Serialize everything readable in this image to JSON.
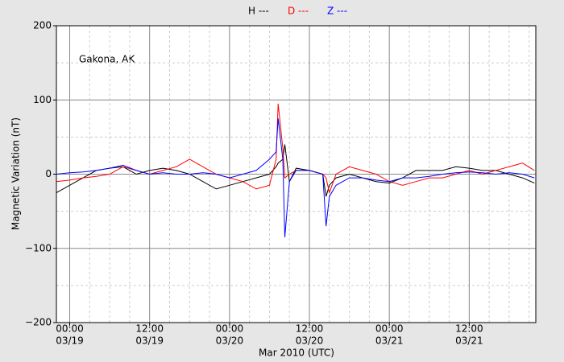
{
  "chart_data": {
    "type": "line",
    "annotation": "Gakona, AK",
    "xlabel": "Mar 2010 (UTC)",
    "ylabel": "Magnetic Variation (nT)",
    "x": [
      "2010-03-18T22:00Z",
      "2010-03-19T00:00Z",
      "2010-03-19T02:00Z",
      "2010-03-19T04:00Z",
      "2010-03-19T06:00Z",
      "2010-03-19T08:00Z",
      "2010-03-19T10:00Z",
      "2010-03-19T12:00Z",
      "2010-03-19T14:00Z",
      "2010-03-19T16:00Z",
      "2010-03-19T18:00Z",
      "2010-03-19T20:00Z",
      "2010-03-19T22:00Z",
      "2010-03-20T00:00Z",
      "2010-03-20T02:00Z",
      "2010-03-20T04:00Z",
      "2010-03-20T06:00Z",
      "2010-03-20T07:00Z",
      "2010-03-20T07:18Z",
      "2010-03-20T08:00Z",
      "2010-03-20T08:18Z",
      "2010-03-20T09:00Z",
      "2010-03-20T10:00Z",
      "2010-03-20T12:00Z",
      "2010-03-20T14:00Z",
      "2010-03-20T14:30Z",
      "2010-03-20T15:00Z",
      "2010-03-20T16:00Z",
      "2010-03-20T18:00Z",
      "2010-03-20T20:00Z",
      "2010-03-20T22:00Z",
      "2010-03-21T00:00Z",
      "2010-03-21T02:00Z",
      "2010-03-21T04:00Z",
      "2010-03-21T06:00Z",
      "2010-03-21T08:00Z",
      "2010-03-21T10:00Z",
      "2010-03-21T12:00Z",
      "2010-03-21T14:00Z",
      "2010-03-21T16:00Z",
      "2010-03-21T18:00Z",
      "2010-03-21T20:00Z",
      "2010-03-21T21:48Z"
    ],
    "series": [
      {
        "name": "H ---",
        "color": "#000000",
        "values": [
          -25,
          -15,
          -5,
          5,
          8,
          10,
          0,
          5,
          8,
          5,
          0,
          -10,
          -20,
          -15,
          -10,
          -5,
          0,
          10,
          15,
          20,
          40,
          -10,
          8,
          5,
          0,
          -30,
          -15,
          -5,
          0,
          -5,
          -10,
          -12,
          -5,
          5,
          5,
          5,
          10,
          8,
          5,
          5,
          0,
          -5,
          -12
        ]
      },
      {
        "name": "D ---",
        "color": "#ff0000",
        "values": [
          -10,
          -8,
          -5,
          -3,
          0,
          10,
          5,
          0,
          5,
          10,
          20,
          10,
          0,
          -5,
          -10,
          -20,
          -15,
          20,
          95,
          35,
          -5,
          0,
          5,
          5,
          0,
          -5,
          -25,
          0,
          10,
          5,
          0,
          -10,
          -15,
          -10,
          -5,
          -5,
          0,
          5,
          0,
          5,
          10,
          15,
          5
        ]
      },
      {
        "name": "Z ---",
        "color": "#0000ff",
        "values": [
          0,
          2,
          3,
          5,
          8,
          12,
          5,
          0,
          2,
          0,
          0,
          2,
          0,
          -5,
          0,
          5,
          20,
          30,
          75,
          20,
          -85,
          -10,
          5,
          5,
          0,
          -70,
          -30,
          -15,
          -5,
          -5,
          -8,
          -10,
          -5,
          -5,
          -3,
          0,
          2,
          3,
          2,
          0,
          2,
          0,
          -5
        ]
      }
    ],
    "xlim": [
      "2010-03-18T22:00Z",
      "2010-03-21T22:00Z"
    ],
    "xticks": [
      {
        "value": "2010-03-19T00:00Z",
        "label": [
          "00:00",
          "03/19"
        ]
      },
      {
        "value": "2010-03-19T12:00Z",
        "label": [
          "12:00",
          "03/19"
        ]
      },
      {
        "value": "2010-03-20T00:00Z",
        "label": [
          "00:00",
          "03/20"
        ]
      },
      {
        "value": "2010-03-20T12:00Z",
        "label": [
          "12:00",
          "03/20"
        ]
      },
      {
        "value": "2010-03-21T00:00Z",
        "label": [
          "00:00",
          "03/21"
        ]
      },
      {
        "value": "2010-03-21T12:00Z",
        "label": [
          "12:00",
          "03/21"
        ]
      }
    ],
    "x_minor_ticks": [
      "2010-03-19T03:00Z",
      "2010-03-19T06:00Z",
      "2010-03-19T09:00Z",
      "2010-03-19T15:00Z",
      "2010-03-19T18:00Z",
      "2010-03-19T21:00Z",
      "2010-03-20T03:00Z",
      "2010-03-20T06:00Z",
      "2010-03-20T09:00Z",
      "2010-03-20T15:00Z",
      "2010-03-20T18:00Z",
      "2010-03-20T21:00Z",
      "2010-03-21T03:00Z",
      "2010-03-21T06:00Z",
      "2010-03-21T09:00Z",
      "2010-03-21T15:00Z",
      "2010-03-21T18:00Z",
      "2010-03-21T21:00Z"
    ],
    "ylim": [
      -200,
      200
    ],
    "yticks": [
      {
        "value": -200,
        "label": "−200"
      },
      {
        "value": -100,
        "label": "−100"
      },
      0,
      100,
      200
    ],
    "y_minor_ticks": [
      -150,
      -50,
      50,
      150
    ],
    "grid": true,
    "legend": "top"
  }
}
